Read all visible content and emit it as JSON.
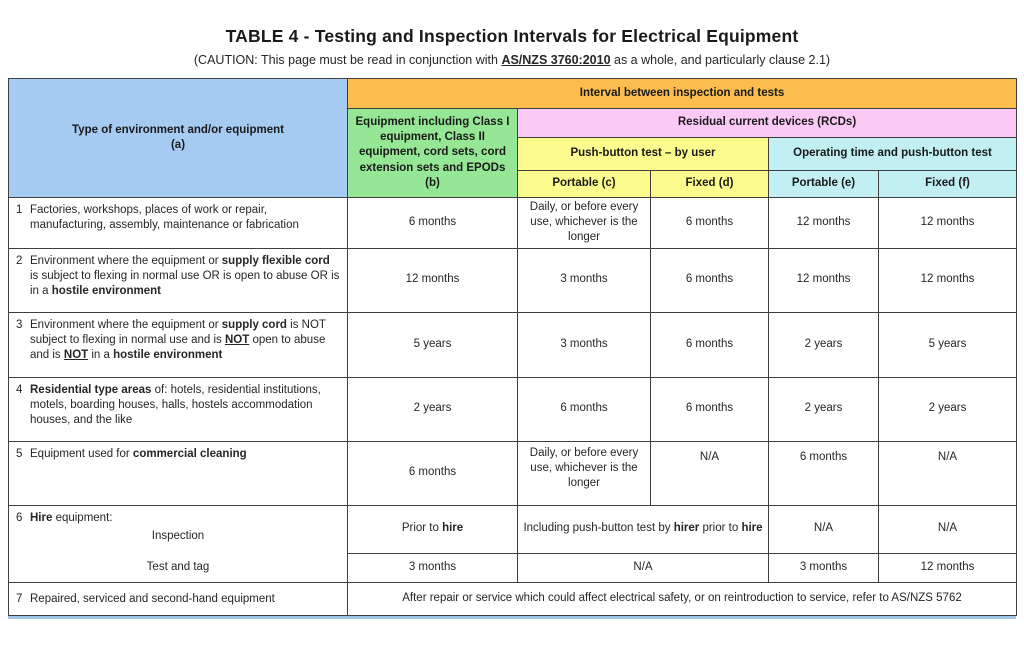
{
  "title": "TABLE 4 - Testing and Inspection Intervals for Electrical Equipment",
  "caution": "(CAUTION: This page must be read in conjunction with **__AS/NZS 3760:2010__** as a whole, and particularly clause 2.1)",
  "colors": {
    "header_environment": "#a6cbf3",
    "header_interval": "#fbbe4e",
    "header_equipment": "#95e795",
    "header_rcd": "#fbc9f5",
    "header_push_button": "#fbfb8e",
    "header_operating_time": "#c2eff2",
    "border": "#3f3f3f",
    "bottom_rule": "#9dc3e6"
  },
  "header": {
    "environment": "Type of environment and/or equipment",
    "environment_ref": "(a)",
    "interval": "Interval between inspection and tests",
    "equipment_class": "Equipment including Class I equipment, Class II equipment, cord sets, cord extension sets and EPODs",
    "equipment_class_ref": "(b)",
    "rcd": "Residual current devices (RCDs)",
    "push_button": "Push-button test – by user",
    "operating_time": "Operating time and push-button test",
    "portable_c": "**Portable** (c)",
    "fixed_d": "**Fixed** (d)",
    "portable_e": "**Portable** (e)",
    "fixed_f": "**Fixed** (f)"
  },
  "rows": [
    {
      "num": "1",
      "env": "Factories, workshops, places of work or repair, manufacturing, assembly, maintenance or fabrication",
      "b": "6 months",
      "c": "Daily, or before every use, whichever is the longer",
      "d": "6 months",
      "e": "12 months",
      "f": "12 months"
    },
    {
      "num": "2",
      "env": "Environment where the equipment or **supply flexible cord** is subject to flexing in normal use OR is open to abuse OR is in a **hostile environment**",
      "b": "12 months",
      "c": "3 months",
      "d": "6 months",
      "e": "12 months",
      "f": "12 months"
    },
    {
      "num": "3",
      "env": "Environment where the equipment or **supply cord** is NOT subject to flexing in normal use and is **__NOT__** open to abuse and is **__NOT__** in a **hostile environment**",
      "b": "5 years",
      "c": "3 months",
      "d": "6 months",
      "e": "2 years",
      "f": "5 years"
    },
    {
      "num": "4",
      "env": "**Residential type areas** of: hotels, residential institutions, motels, boarding houses, halls,  hostels accommodation houses, and the like",
      "b": "2 years",
      "c": "6 months",
      "d": "6 months",
      "e": "2 years",
      "f": "2 years"
    },
    {
      "num": "5",
      "env": "Equipment used for **commercial cleaning**",
      "b": "6 months",
      "c": "Daily, or before every use, whichever is the longer",
      "d": "N/A",
      "e": "6 months",
      "f": "N/A"
    }
  ],
  "hire": {
    "num": "6",
    "label": "**Hire** equipment:",
    "inspection_label": "Inspection",
    "test_tag_label": "Test and tag",
    "inspection": {
      "b": "Prior to **hire**",
      "cd": "Including push-button test by **hirer** prior to **hire**",
      "e": "N/A",
      "f": "N/A"
    },
    "test_tag": {
      "b": "3 months",
      "cd": "N/A",
      "e": "3 months",
      "f": "12 months"
    }
  },
  "repaired": {
    "num": "7",
    "label": "Repaired, serviced and second-hand equipment",
    "note": "After repair or service which could affect electrical safety, or on reintroduction to service, refer to  AS/NZS 5762"
  }
}
